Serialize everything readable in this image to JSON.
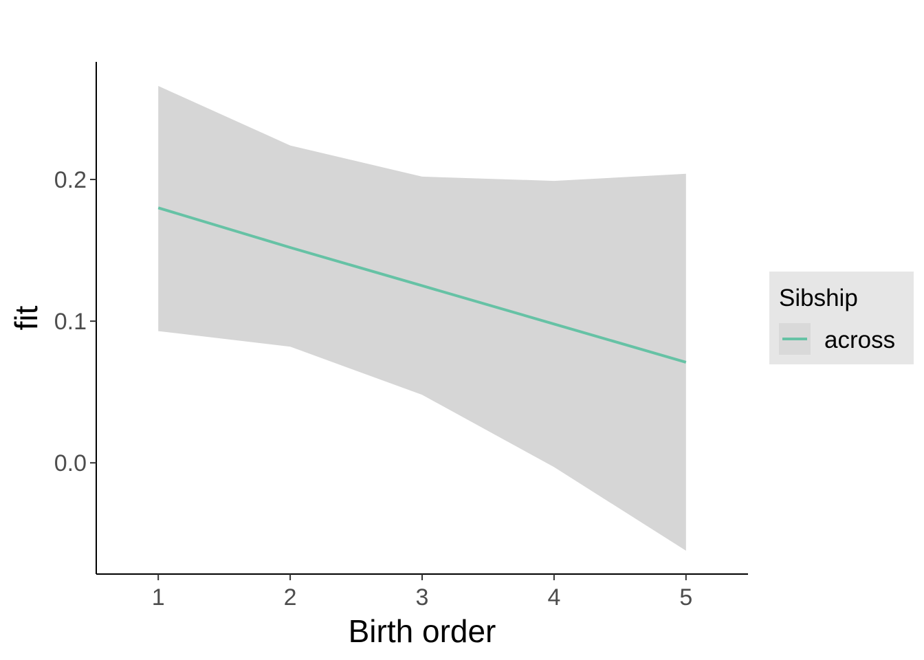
{
  "chart_data": {
    "type": "line",
    "xlabel": "Birth order",
    "ylabel": "fit",
    "x": [
      1,
      2,
      3,
      4,
      5
    ],
    "xticks": [
      "1",
      "2",
      "3",
      "4",
      "5"
    ],
    "xlim": [
      0.53,
      5.47
    ],
    "ylim": [
      -0.0785,
      0.283
    ],
    "yticks": [
      0.0,
      0.1,
      0.2
    ],
    "ytick_labels": [
      "0.0",
      "0.1",
      "0.2"
    ],
    "series": [
      {
        "name": "across",
        "color": "#66c2a5",
        "values": [
          0.18,
          0.152,
          0.125,
          0.098,
          0.071
        ],
        "ci_lower": [
          0.093,
          0.082,
          0.048,
          -0.003,
          -0.062
        ],
        "ci_upper": [
          0.266,
          0.224,
          0.202,
          0.199,
          0.204
        ],
        "ci_color": "#d6d6d6"
      }
    ],
    "legend": {
      "title": "Sibship",
      "position": "right",
      "background": "#e6e6e6",
      "key_background": "#d9d9d9"
    },
    "grid": false
  }
}
